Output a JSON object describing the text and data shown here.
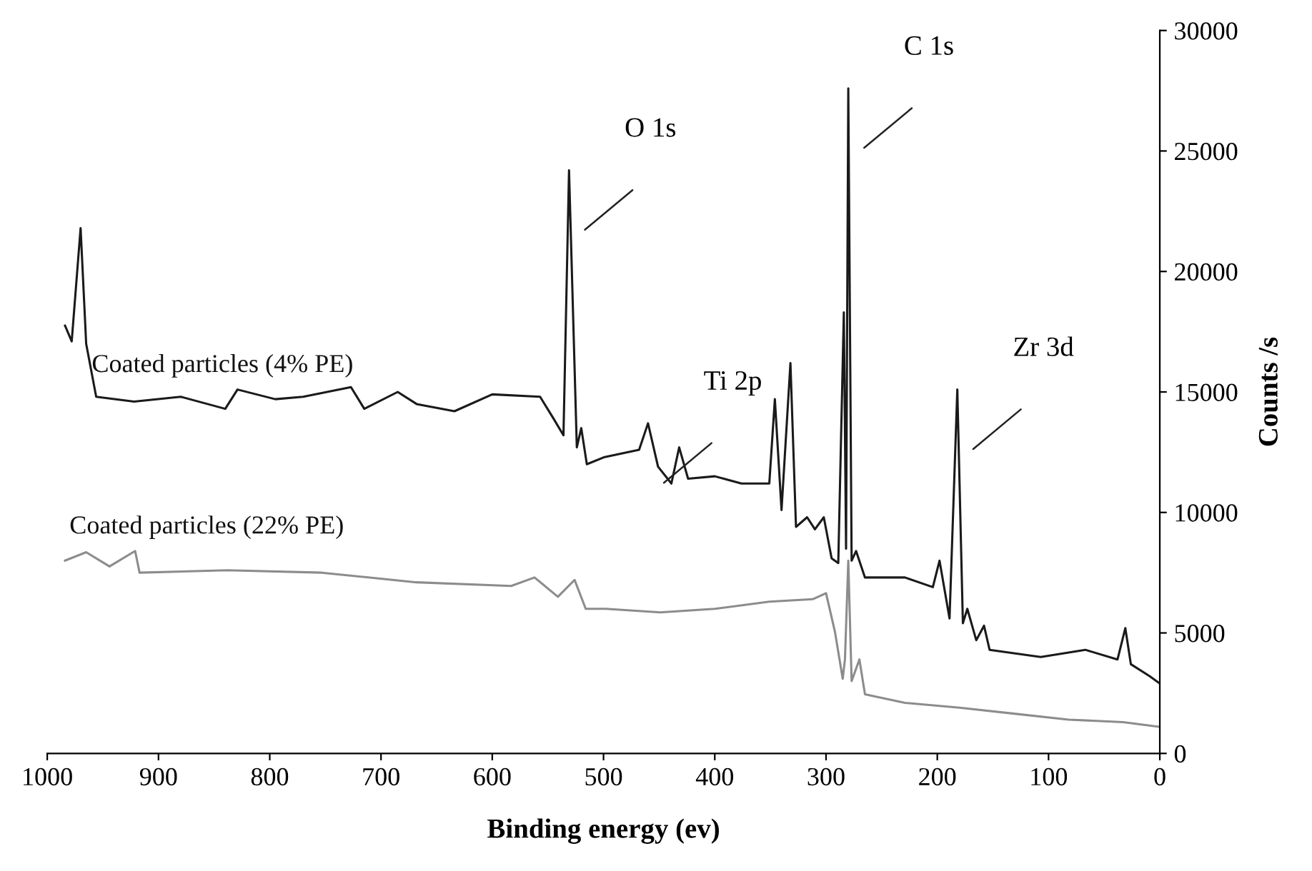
{
  "chart_data": {
    "type": "line",
    "xlabel": "Binding energy (ev)",
    "ylabel": "Counts /s",
    "xlim": [
      1000,
      0
    ],
    "ylim": [
      0,
      30000
    ],
    "xticks": [
      1000,
      900,
      800,
      700,
      600,
      500,
      400,
      300,
      200,
      100,
      0
    ],
    "yticks": [
      0,
      5000,
      10000,
      15000,
      20000,
      25000,
      30000
    ],
    "grid": false,
    "legend": false,
    "marker": "none",
    "line_style": "solid",
    "series": [
      {
        "name": "Coated particles (4% PE)",
        "color": "#1a1a1a",
        "x": [
          984,
          978,
          970,
          965,
          956,
          922,
          880,
          840,
          829,
          795,
          770,
          727,
          715,
          685,
          668,
          634,
          600,
          557,
          545,
          536,
          531,
          524,
          520,
          515,
          499,
          468,
          460,
          451,
          439,
          432,
          424,
          400,
          376,
          351,
          346,
          340,
          332,
          327,
          317,
          310,
          302,
          295,
          289,
          284,
          282,
          280,
          277,
          273,
          265,
          229,
          204,
          198,
          189,
          182,
          177,
          173,
          165,
          158,
          153,
          107,
          67,
          38,
          31,
          26,
          9,
          0
        ],
        "values": [
          17750,
          17100,
          21800,
          17000,
          14800,
          14600,
          14800,
          14300,
          15100,
          14700,
          14800,
          15200,
          14300,
          15000,
          14500,
          14200,
          14900,
          14800,
          13900,
          13200,
          24200,
          12700,
          13500,
          12000,
          12300,
          12600,
          13700,
          11900,
          11200,
          12700,
          11400,
          11500,
          11200,
          11200,
          14700,
          10100,
          16200,
          9400,
          9800,
          9300,
          9800,
          8100,
          7900,
          18300,
          8500,
          27600,
          8000,
          8400,
          7300,
          7300,
          6900,
          8000,
          5600,
          15100,
          5400,
          6000,
          4700,
          5300,
          4300,
          4000,
          4300,
          3900,
          5200,
          3700,
          3200,
          2900
        ]
      },
      {
        "name": "Coated particles (22% PE)",
        "color": "#8c8c8c",
        "x": [
          984,
          965,
          944,
          921,
          917,
          838,
          753,
          668,
          583,
          562,
          541,
          526,
          516,
          498,
          449,
          400,
          351,
          312,
          300,
          292,
          285,
          283,
          280,
          277,
          270,
          265,
          229,
          180,
          131,
          82,
          33,
          0
        ],
        "values": [
          8000,
          8350,
          7760,
          8400,
          7500,
          7600,
          7500,
          7100,
          6950,
          7300,
          6500,
          7200,
          6000,
          6000,
          5850,
          6000,
          6300,
          6400,
          6650,
          5050,
          3100,
          3900,
          8000,
          3000,
          3900,
          2450,
          2100,
          1900,
          1650,
          1400,
          1300,
          1100
        ]
      }
    ],
    "annotations": [
      {
        "text": "O 1s",
        "x": 531,
        "y": 24200
      },
      {
        "text": "C 1s",
        "x": 280,
        "y": 27600
      },
      {
        "text": "Ti 2p",
        "x": 460,
        "y": 13700
      },
      {
        "text": "Zr 3d",
        "x": 182,
        "y": 15100
      }
    ]
  }
}
